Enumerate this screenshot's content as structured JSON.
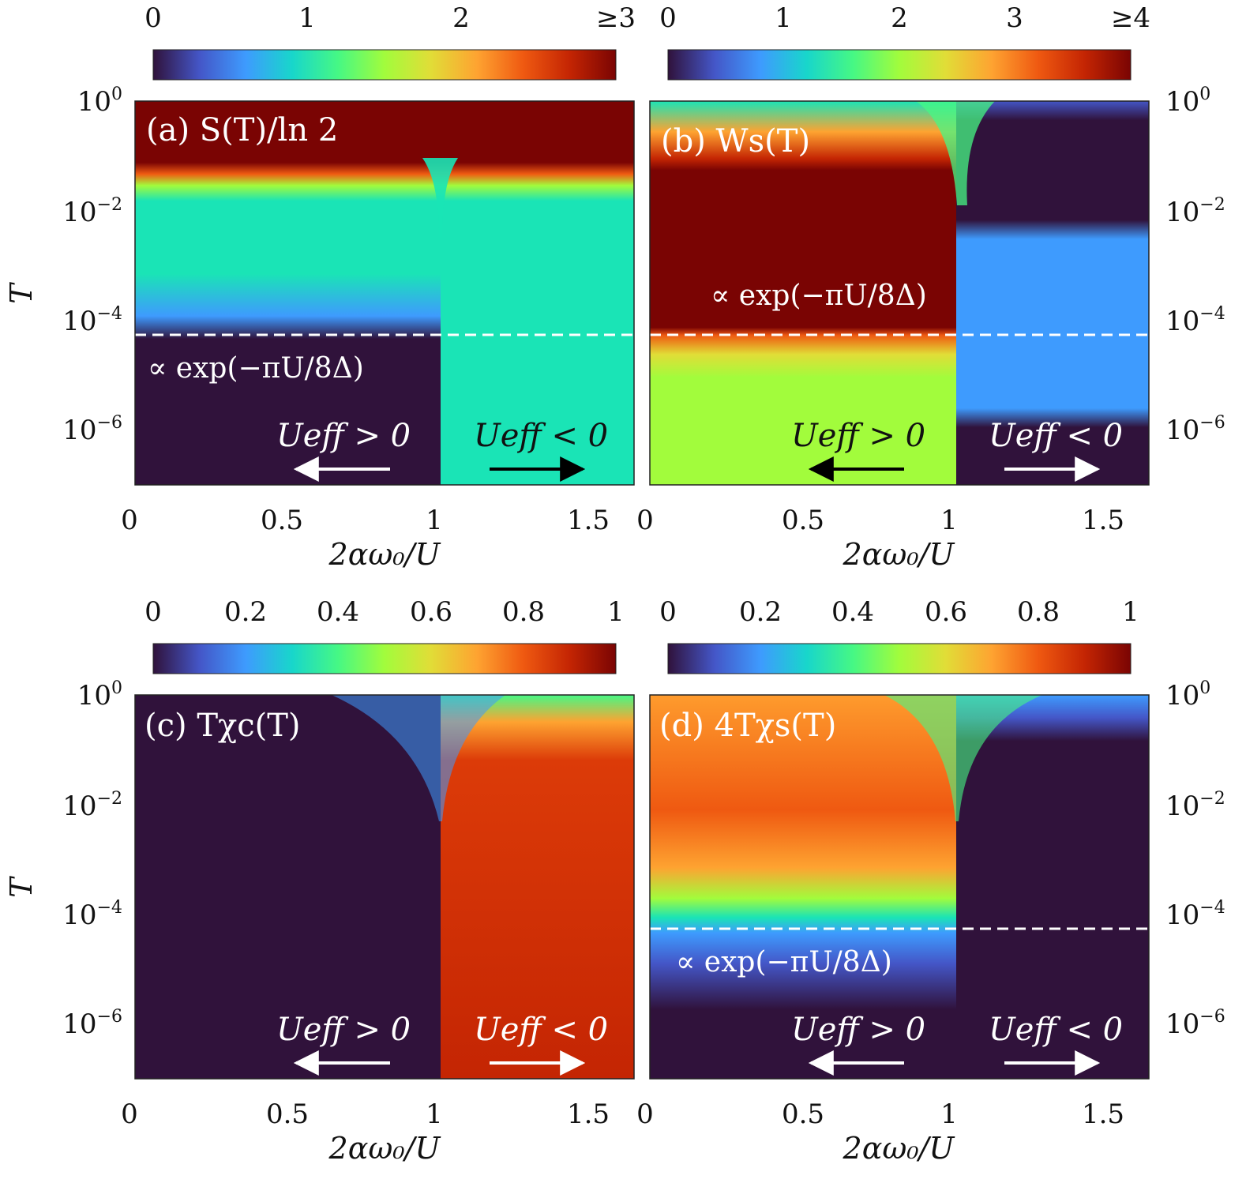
{
  "figure": {
    "x_axis_label": "2αω₀/U",
    "y_axis_label": "T",
    "threshold_label": "∝ exp(−πU/8Δ)"
  },
  "chart_data": [
    {
      "type": "heatmap",
      "panel": "a",
      "title": "(a) S(T)/ln 2",
      "xlabel": "2αω₀/U",
      "ylabel": "T",
      "xlim": [
        0,
        1.65
      ],
      "ylim_log10": [
        -7,
        0
      ],
      "x_ticks": [
        "0",
        "0.5",
        "1",
        "1.5"
      ],
      "y_ticks": [
        "10^0",
        "10^-2",
        "10^-4",
        "10^-6"
      ],
      "colorbar": {
        "ticks": [
          "0",
          "1",
          "2",
          "≥3"
        ],
        "range": [
          0,
          3
        ]
      },
      "dashed_line_T_log10": -4.2,
      "dashed_line_label": "∝ exp(−πU/8Δ)",
      "regions": [
        {
          "name": "Ueff > 0",
          "x": [
            0,
            1.0
          ],
          "values": {
            "high_T": 3.0,
            "mid_T": 1.0,
            "low_T": 0.0
          }
        },
        {
          "name": "Ueff < 0",
          "x": [
            1.0,
            1.65
          ],
          "values": {
            "high_T": 3.0,
            "mid_T": 1.0,
            "low_T": 1.0
          }
        }
      ],
      "annotations": [
        "Ueff > 0",
        "Ueff < 0"
      ],
      "arrow_colors": [
        "#ffffff",
        "#000000"
      ]
    },
    {
      "type": "heatmap",
      "panel": "b",
      "title": "(b) Ws(T)",
      "xlabel": "2αω₀/U",
      "ylabel": "T",
      "xlim": [
        0,
        1.65
      ],
      "ylim_log10": [
        -7,
        0
      ],
      "x_ticks": [
        "0",
        "0.5",
        "1",
        "1.5"
      ],
      "y_ticks": [
        "10^0",
        "10^-2",
        "10^-4",
        "10^-6"
      ],
      "colorbar": {
        "ticks": [
          "0",
          "1",
          "2",
          "3",
          "≥4"
        ],
        "range": [
          0,
          4
        ]
      },
      "dashed_line_T_log10": -4.2,
      "dashed_line_label": "∝ exp(−πU/8Δ)",
      "regions": [
        {
          "name": "Ueff > 0",
          "x": [
            0,
            1.0
          ],
          "values": {
            "high_T": 3.0,
            "mid_T": 4.0,
            "low_T": 2.4
          }
        },
        {
          "name": "Ueff < 0",
          "x": [
            1.0,
            1.65
          ],
          "values": {
            "high_T": 0.0,
            "mid_T": 1.0,
            "low_T": 0.0
          }
        }
      ],
      "annotations": [
        "Ueff > 0",
        "Ueff < 0"
      ],
      "arrow_colors": [
        "#000000",
        "#ffffff"
      ]
    },
    {
      "type": "heatmap",
      "panel": "c",
      "title": "(c) Tχc(T)",
      "xlabel": "2αω₀/U",
      "ylabel": "T",
      "xlim": [
        0,
        1.65
      ],
      "ylim_log10": [
        -7,
        0
      ],
      "x_ticks": [
        "0",
        "0.5",
        "1",
        "1.5"
      ],
      "y_ticks": [
        "10^0",
        "10^-2",
        "10^-4",
        "10^-6"
      ],
      "colorbar": {
        "ticks": [
          "0",
          "0.2",
          "0.4",
          "0.6",
          "0.8",
          "1"
        ],
        "range": [
          0,
          1
        ]
      },
      "regions": [
        {
          "name": "Ueff > 0",
          "x": [
            0,
            1.0
          ],
          "values": {
            "high_T": 0.0,
            "mid_T": 0.0,
            "low_T": 0.0
          }
        },
        {
          "name": "Ueff < 0",
          "x": [
            1.0,
            1.65
          ],
          "values": {
            "high_T": 0.85,
            "mid_T": 0.9,
            "low_T": 0.9
          }
        }
      ],
      "annotations": [
        "Ueff > 0",
        "Ueff < 0"
      ],
      "arrow_colors": [
        "#ffffff",
        "#ffffff"
      ]
    },
    {
      "type": "heatmap",
      "panel": "d",
      "title": "(d) 4Tχs(T)",
      "xlabel": "2αω₀/U",
      "ylabel": "T",
      "xlim": [
        0,
        1.65
      ],
      "ylim_log10": [
        -7,
        0
      ],
      "x_ticks": [
        "0",
        "0.5",
        "1",
        "1.5"
      ],
      "y_ticks": [
        "10^0",
        "10^-2",
        "10^-4",
        "10^-6"
      ],
      "colorbar": {
        "ticks": [
          "0",
          "0.2",
          "0.4",
          "0.6",
          "0.8",
          "1"
        ],
        "range": [
          0,
          1
        ]
      },
      "dashed_line_T_log10": -4.2,
      "dashed_line_label": "∝ exp(−πU/8Δ)",
      "regions": [
        {
          "name": "Ueff > 0",
          "x": [
            0,
            1.0
          ],
          "values": {
            "high_T": 0.8,
            "mid_T": 0.8,
            "low_T": 0.0
          }
        },
        {
          "name": "Ueff < 0",
          "x": [
            1.0,
            1.65
          ],
          "values": {
            "high_T": 0.0,
            "mid_T": 0.0,
            "low_T": 0.0
          }
        }
      ],
      "annotations": [
        "Ueff > 0",
        "Ueff < 0"
      ],
      "arrow_colors": [
        "#ffffff",
        "#ffffff"
      ]
    }
  ]
}
